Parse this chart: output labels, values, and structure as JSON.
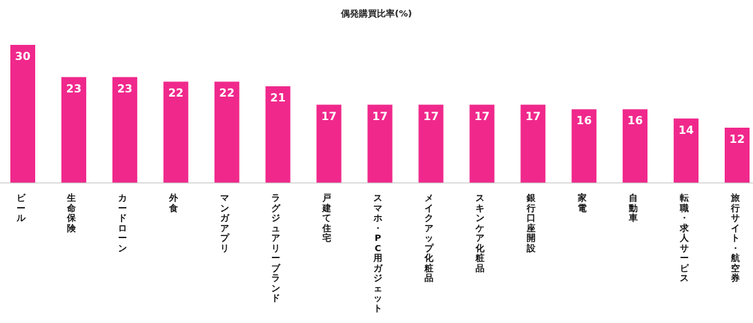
{
  "chart_data": {
    "type": "bar",
    "title": "偶発購買比率(%)",
    "categories": [
      "ビール",
      "生命保険",
      "カードローン",
      "外食",
      "マンガアプリ",
      "ラグジュアリーブランド",
      "戸建て住宅",
      "スマホ・PC用ガジェット",
      "メイクアップ化粧品",
      "スキンケア化粧品",
      "銀行口座開設",
      "家電",
      "自動車",
      "転職・求人サービス",
      "旅行サイト・航空券"
    ],
    "values": [
      30,
      23,
      23,
      22,
      22,
      21,
      17,
      17,
      17,
      17,
      17,
      16,
      16,
      14,
      12
    ],
    "color": "#f0288c",
    "data_labels": true
  }
}
